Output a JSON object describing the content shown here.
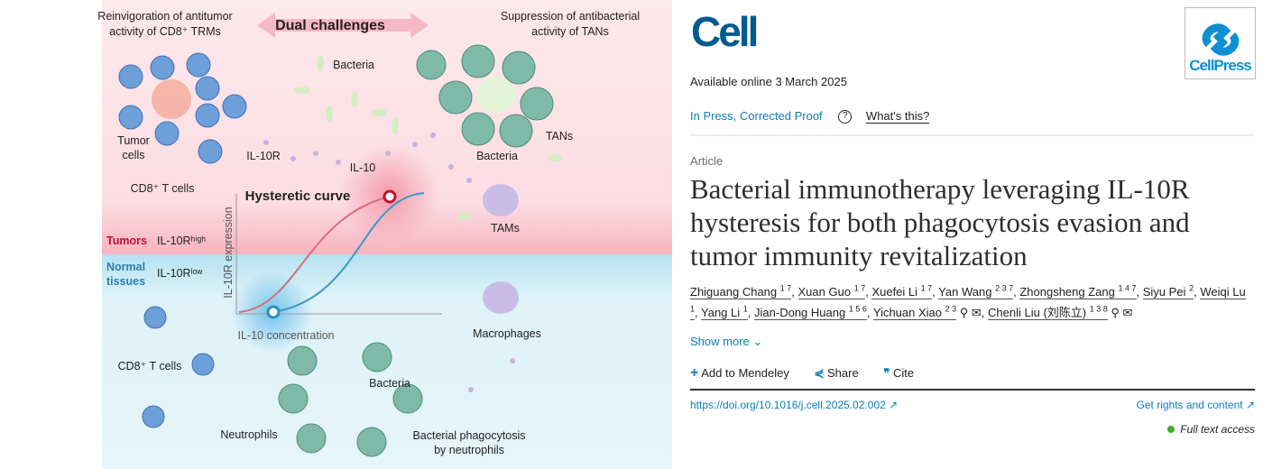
{
  "figure": {
    "top_left_1": "Reinvigoration of antitumor",
    "top_left_2": "activity of CD8⁺ TRMs",
    "center_banner": "Dual challenges",
    "top_right_1": "Suppression of antibacterial",
    "top_right_2": "activity of TANs",
    "bacteria_1": "Bacteria",
    "tumor_1": "Tumor",
    "tumor_2": "cells",
    "il10r": "IL-10R",
    "il10": "IL-10",
    "cd8_top": "CD8⁺ T cells",
    "tans": "TANs",
    "bacteria_2": "Bacteria",
    "tams": "TAMs",
    "curve_title": "Hysteretic curve",
    "tumors": "Tumors",
    "il10r_high": "IL-10Rʰⁱᵍʰ",
    "normal_1": "Normal",
    "normal_2": "tissues",
    "il10r_low": "IL-10Rˡᵒʷ",
    "y_axis": "IL-10R expression",
    "x_axis": "IL-10 concentration",
    "macrophages": "Macrophages",
    "cd8_bottom": "CD8⁺ T cells",
    "bacteria_3": "Bacteria",
    "neutrophils": "Neutrophils",
    "phago_1": "Bacterial phagocytosis",
    "phago_2": "by neutrophils",
    "colors": {
      "pink_bg": "#fde3e8",
      "blue_bg": "#dff3f8",
      "red": "#c8102e",
      "blue": "#2c8fbf"
    }
  },
  "journal": {
    "name": "Cell",
    "publisher": "CellPress"
  },
  "available": "Available online 3 March 2025",
  "status": {
    "label": "In Press, Corrected Proof",
    "help": "What's this?"
  },
  "article_type": "Article",
  "title": "Bacterial immunotherapy leveraging IL-10R hysteresis for both phagocytosis evasion and tumor immunity revitalization",
  "authors": [
    {
      "name": "Zhiguang Chang",
      "sup": "1 7"
    },
    {
      "name": "Xuan Guo",
      "sup": "1 7"
    },
    {
      "name": "Xuefei Li",
      "sup": "1 7"
    },
    {
      "name": "Yan Wang",
      "sup": "2 3 7"
    },
    {
      "name": "Zhongsheng Zang",
      "sup": "1 4 7"
    },
    {
      "name": "Siyu Pei",
      "sup": "2"
    },
    {
      "name": "Weiqi Lu",
      "sup": "1"
    },
    {
      "name": "Yang Li",
      "sup": "1"
    },
    {
      "name": "Jian-Dong Huang",
      "sup": "1 5 6"
    },
    {
      "name": "Yichuan Xiao",
      "sup": "2 3"
    },
    {
      "name": "Chenli Liu (刘陈立)",
      "sup": "1 3 8"
    }
  ],
  "show_more": "Show more",
  "actions": {
    "mendeley": "Add to Mendeley",
    "share": "Share",
    "cite": "Cite"
  },
  "doi": "https://doi.org/10.1016/j.cell.2025.02.002",
  "rights": "Get rights and content",
  "access": "Full text access",
  "access_color": "#3dae2b"
}
